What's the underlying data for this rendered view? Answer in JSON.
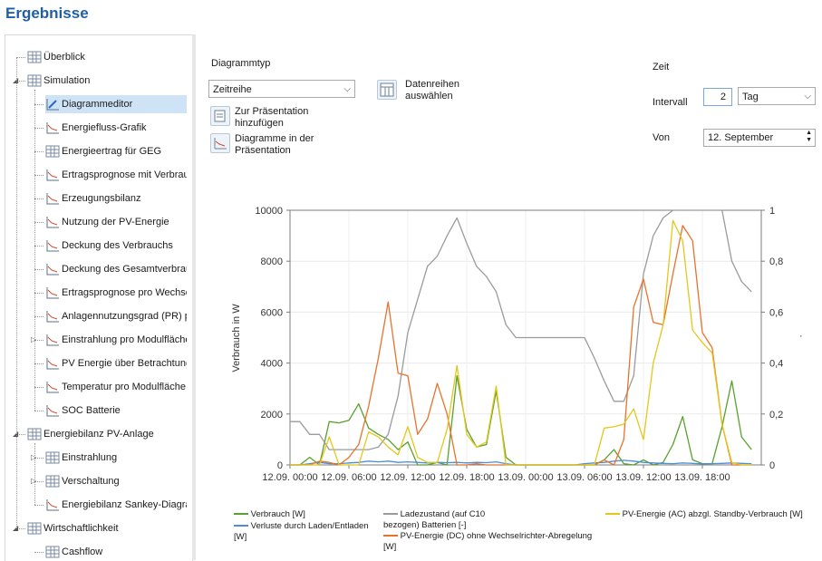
{
  "page": {
    "title": "Ergebnisse"
  },
  "tree": {
    "items": [
      {
        "label": "Überblick",
        "icon": "table-icon",
        "level": 0
      },
      {
        "label": "Simulation",
        "icon": "table-icon",
        "level": 0,
        "expanded": true
      },
      {
        "label": "Diagrammeditor",
        "icon": "chart-edit-icon",
        "level": 1,
        "selected": true
      },
      {
        "label": "Energiefluss-Grafik",
        "icon": "chart-icon",
        "level": 1
      },
      {
        "label": "Energieertrag für GEG",
        "icon": "table-icon",
        "level": 1
      },
      {
        "label": "Ertragsprognose mit Verbrauch",
        "icon": "chart-icon",
        "level": 1
      },
      {
        "label": "Erzeugungsbilanz",
        "icon": "chart-icon",
        "level": 1
      },
      {
        "label": "Nutzung der PV-Energie",
        "icon": "chart-icon",
        "level": 1
      },
      {
        "label": "Deckung des Verbrauchs",
        "icon": "chart-icon",
        "level": 1
      },
      {
        "label": "Deckung des Gesamtverbrauchs",
        "icon": "chart-icon",
        "level": 1
      },
      {
        "label": "Ertragsprognose pro Wechselrichter",
        "icon": "chart-icon",
        "level": 1
      },
      {
        "label": "Anlagennutzungsgrad (PR) pro",
        "icon": "chart-icon",
        "level": 1
      },
      {
        "label": "Einstrahlung pro Modulfläche",
        "icon": "chart-icon",
        "level": 1,
        "collapsed": true
      },
      {
        "label": "PV Energie über Betrachtungszeitraum",
        "icon": "chart-icon",
        "level": 1
      },
      {
        "label": "Temperatur pro Modulfläche",
        "icon": "chart-icon",
        "level": 1
      },
      {
        "label": "SOC Batterie",
        "icon": "chart-icon",
        "level": 1
      },
      {
        "label": "Energiebilanz PV-Anlage",
        "icon": "table-icon",
        "level": 0,
        "expanded": true
      },
      {
        "label": "Einstrahlung",
        "icon": "table-icon",
        "level": 1,
        "collapsed": true
      },
      {
        "label": "Verschaltung",
        "icon": "table-icon",
        "level": 1,
        "collapsed": true
      },
      {
        "label": "Energiebilanz Sankey-Diagramm",
        "icon": "chart-icon",
        "level": 1
      },
      {
        "label": "Wirtschaftlichkeit",
        "icon": "table-icon",
        "level": 0,
        "expanded": true
      },
      {
        "label": "Cashflow",
        "icon": "table-icon",
        "level": 1
      }
    ]
  },
  "controls": {
    "diagram_type_label": "Diagrammtyp",
    "diagram_type_value": "Zeitreihe",
    "add_presentation_label": "Zur Präsentation hinzufügen",
    "diagrams_in_presentation_label": "Diagramme in der Präsentation",
    "select_series_label": "Datenreihen auswählen",
    "time_label": "Zeit",
    "interval_label": "Intervall",
    "interval_value": "2",
    "interval_unit": "Tag",
    "from_label": "Von",
    "from_value": "12. September"
  },
  "chart_data": {
    "type": "line",
    "ylabel": "Verbrauch in W",
    "y2label": "",
    "ylim": [
      0,
      10000
    ],
    "y_ticks": [
      "10000",
      "8000",
      "6000",
      "4000",
      "2000",
      "0"
    ],
    "y2lim": [
      0,
      1
    ],
    "y2_ticks": [
      "1",
      "0,8",
      "0,6",
      "0,4",
      "0,2",
      "0"
    ],
    "x_ticks": [
      "12.09. 00:00",
      "12.09. 06:00",
      "12.09. 12:00",
      "12.09. 18:00",
      "13.09. 00:00",
      "13.09. 06:00",
      "13.09. 12:00",
      "13.09. 18:00"
    ],
    "x_hours": [
      0,
      1,
      2,
      3,
      4,
      5,
      6,
      7,
      8,
      9,
      10,
      11,
      12,
      13,
      14,
      15,
      16,
      17,
      18,
      19,
      20,
      21,
      22,
      23,
      24,
      25,
      26,
      27,
      28,
      29,
      30,
      31,
      32,
      33,
      34,
      35,
      36,
      37,
      38,
      39,
      40,
      41,
      42,
      43,
      44,
      45,
      46,
      47
    ],
    "series": [
      {
        "name": "Verbrauch  [W]",
        "color": "#5aa02c",
        "axis": "left",
        "values": [
          0,
          0,
          300,
          0,
          1700,
          1650,
          1750,
          2400,
          1450,
          1200,
          1000,
          600,
          900,
          0,
          0,
          100,
          0,
          3500,
          1400,
          700,
          800,
          2900,
          300,
          0,
          0,
          0,
          0,
          0,
          0,
          0,
          0,
          0,
          200,
          600,
          50,
          0,
          200,
          0,
          100,
          800,
          1900,
          200,
          50,
          50,
          1500,
          3300,
          1100,
          600
        ]
      },
      {
        "name": "Verluste durch Laden/Entladen [W]",
        "color": "#4a8fd8",
        "axis": "left",
        "values": [
          0,
          0,
          50,
          100,
          50,
          50,
          80,
          100,
          150,
          120,
          150,
          100,
          120,
          100,
          80,
          100,
          90,
          100,
          80,
          100,
          90,
          120,
          50,
          0,
          0,
          0,
          0,
          0,
          0,
          0,
          50,
          80,
          100,
          150,
          180,
          150,
          100,
          80,
          60,
          50,
          80,
          60,
          40,
          50,
          60,
          80,
          60,
          50
        ]
      },
      {
        "name": "Ladezustand (auf C10 bezogen) Batterien  [-]",
        "color": "#9b9b9b",
        "axis": "right",
        "values": [
          0.17,
          0.17,
          0.12,
          0.12,
          0.06,
          0.06,
          0.06,
          0.06,
          0.06,
          0.07,
          0.12,
          0.27,
          0.52,
          0.65,
          0.78,
          0.82,
          0.9,
          0.97,
          0.87,
          0.78,
          0.74,
          0.68,
          0.55,
          0.5,
          0.5,
          0.5,
          0.5,
          0.5,
          0.5,
          0.5,
          0.5,
          0.42,
          0.33,
          0.25,
          0.25,
          0.35,
          0.75,
          0.9,
          0.97,
          1.0,
          1.0,
          1.0,
          1.0,
          1.0,
          1.0,
          0.8,
          0.72,
          0.68
        ]
      },
      {
        "name": "PV-Energie (DC) ohne Wechselrichter-Abregelung  [W]",
        "color": "#e8722b",
        "axis": "left",
        "values": [
          0,
          0,
          0,
          150,
          100,
          0,
          300,
          800,
          2300,
          4200,
          6400,
          3600,
          3500,
          1200,
          1800,
          3200,
          2000,
          0,
          0,
          50,
          0,
          0,
          0,
          0,
          0,
          0,
          0,
          0,
          0,
          0,
          0,
          0,
          200,
          0,
          1000,
          6200,
          7300,
          5600,
          5500,
          7500,
          9400,
          8800,
          5200,
          4600,
          1600,
          0,
          0,
          0
        ]
      },
      {
        "name": "PV-Energie (AC) abzgl. Standby-Verbrauch [W]",
        "color": "#e3c71c",
        "axis": "left",
        "values": [
          0,
          0,
          0,
          0,
          1100,
          0,
          0,
          0,
          1300,
          1100,
          700,
          400,
          1500,
          300,
          100,
          100,
          1400,
          3900,
          1200,
          700,
          900,
          3100,
          0,
          0,
          0,
          0,
          0,
          0,
          0,
          0,
          0,
          0,
          1450,
          1500,
          1600,
          2200,
          1000,
          4000,
          5500,
          9600,
          8800,
          5300,
          4800,
          4400,
          1600,
          100,
          0,
          0
        ]
      }
    ],
    "legend": {
      "verbrauch": "Verbrauch  [W]",
      "verluste": "Verluste durch Laden/Entladen [W]",
      "ladezustand": "Ladezustand (auf C10 bezogen) Batterien  [-]",
      "pv_dc": "PV-Energie (DC) ohne Wechselrichter-Abregelung [W]",
      "pv_ac": "PV-Energie (AC) abzgl. Standby-Verbrauch [W]"
    }
  }
}
